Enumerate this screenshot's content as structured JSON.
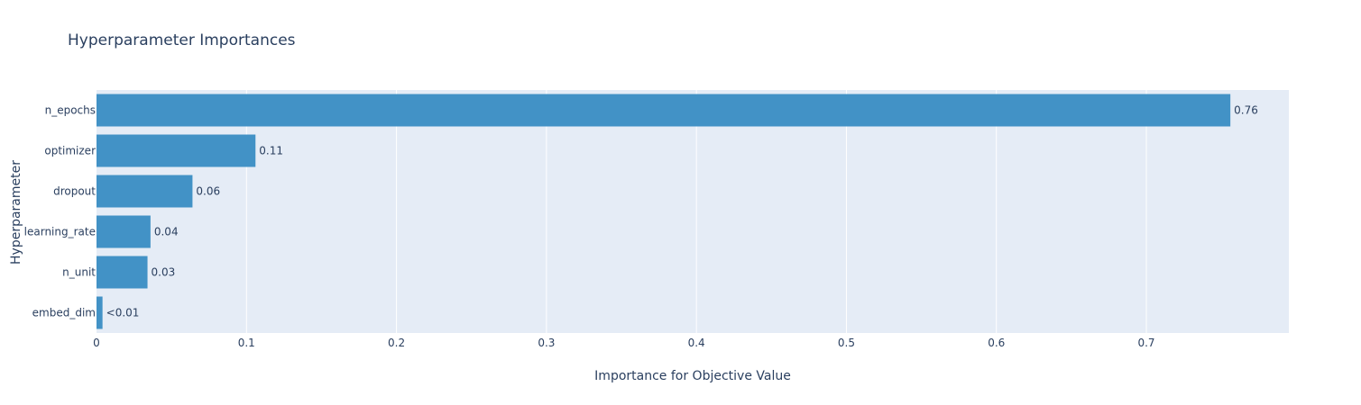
{
  "chart_data": {
    "type": "bar",
    "orientation": "horizontal",
    "title": "Hyperparameter Importances",
    "xlabel": "Importance for Objective Value",
    "ylabel": "Hyperparameter",
    "categories": [
      "n_epochs",
      "optimizer",
      "dropout",
      "learning_rate",
      "n_unit",
      "embed_dim"
    ],
    "values": [
      0.756,
      0.106,
      0.064,
      0.036,
      0.034,
      0.004
    ],
    "data_labels": [
      "0.76",
      "0.11",
      "0.06",
      "0.04",
      "0.03",
      "<0.01"
    ],
    "xlim": [
      0,
      0.795
    ],
    "xticks": [
      0,
      0.1,
      0.2,
      0.3,
      0.4,
      0.5,
      0.6,
      0.7
    ],
    "xtick_labels": [
      "0",
      "0.1",
      "0.2",
      "0.3",
      "0.4",
      "0.5",
      "0.6",
      "0.7"
    ],
    "grid": true,
    "colors": {
      "bar": "#4292c6",
      "plot_background": "#e5ecf6",
      "grid": "#ffffff",
      "text": "#2a3f5f"
    }
  }
}
